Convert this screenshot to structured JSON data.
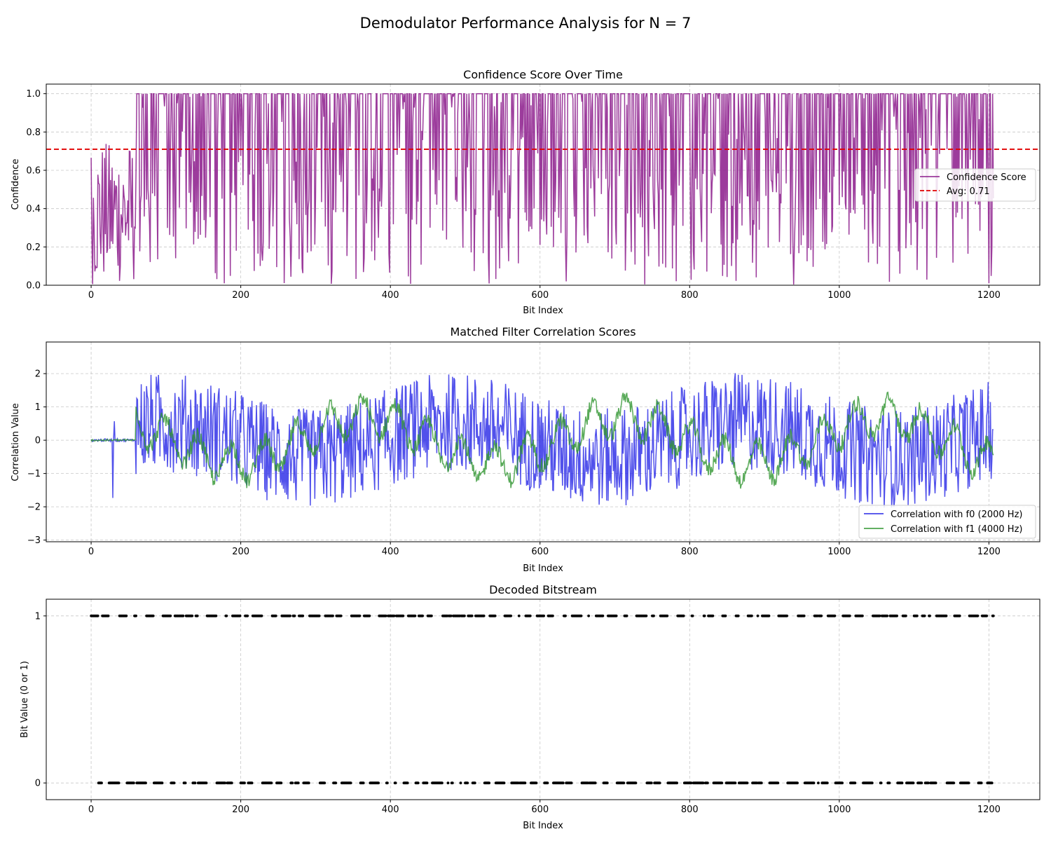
{
  "figure_title": "Demodulator Performance Analysis for N = 7",
  "colors": {
    "confidence": "#8b1a8b",
    "average": "#e00000",
    "f0": "#2626e6",
    "f1": "#2f952f",
    "bits": "#000000"
  },
  "chart_data": [
    {
      "type": "line",
      "title": "Confidence Score Over Time",
      "xlabel": "Bit Index",
      "ylabel": "Confidence",
      "xlim": [
        -60,
        1268
      ],
      "ylim": [
        0,
        1.05
      ],
      "xticks": [
        0,
        200,
        400,
        600,
        800,
        1000,
        1200
      ],
      "yticks": [
        0.0,
        0.2,
        0.4,
        0.6,
        0.8,
        1.0
      ],
      "ytick_labels": [
        "0.0",
        "0.2",
        "0.4",
        "0.6",
        "0.8",
        "1.0"
      ],
      "grid": true,
      "legend_position": "center-right",
      "series": [
        {
          "name": "Confidence Score",
          "x_start": 0,
          "x_end": 1206,
          "n_points": 1207,
          "min": 0.0,
          "max": 1.0
        }
      ],
      "average_line": {
        "label": "Avg: 0.71",
        "value": 0.71
      },
      "legend": [
        "Confidence Score",
        "Avg: 0.71"
      ]
    },
    {
      "type": "line",
      "title": "Matched Filter Correlation Scores",
      "xlabel": "Bit Index",
      "ylabel": "Correlation Value",
      "xlim": [
        -60,
        1268
      ],
      "ylim": [
        -3.05,
        2.95
      ],
      "xticks": [
        0,
        200,
        400,
        600,
        800,
        1000,
        1200
      ],
      "yticks": [
        -3,
        -2,
        -1,
        0,
        1,
        2
      ],
      "ytick_labels": [
        "−3",
        "−2",
        "−1",
        "0",
        "1",
        "2"
      ],
      "grid": true,
      "legend_position": "lower-right",
      "series": [
        {
          "name": "Correlation with f0 (2000 Hz)",
          "x_start": 0,
          "x_end": 1206,
          "n_points": 1207,
          "min": -2.8,
          "max": 2.7
        },
        {
          "name": "Correlation with f1 (4000 Hz)",
          "x_start": 0,
          "x_end": 1206,
          "n_points": 1207,
          "min": -1.7,
          "max": 1.7
        }
      ],
      "legend": [
        "Correlation with f0 (2000 Hz)",
        "Correlation with f1 (4000 Hz)"
      ]
    },
    {
      "type": "scatter",
      "title": "Decoded Bitstream",
      "xlabel": "Bit Index",
      "ylabel": "Bit Value (0 or 1)",
      "xlim": [
        -60,
        1268
      ],
      "ylim": [
        -0.1,
        1.1
      ],
      "xticks": [
        0,
        200,
        400,
        600,
        800,
        1000,
        1200
      ],
      "yticks": [
        0,
        1
      ],
      "ytick_labels": [
        "0",
        "1"
      ],
      "grid": true,
      "series": [
        {
          "name": "",
          "x_start": 0,
          "x_end": 1206,
          "n_points": 1207,
          "values": [
            0,
            1
          ]
        }
      ]
    }
  ]
}
